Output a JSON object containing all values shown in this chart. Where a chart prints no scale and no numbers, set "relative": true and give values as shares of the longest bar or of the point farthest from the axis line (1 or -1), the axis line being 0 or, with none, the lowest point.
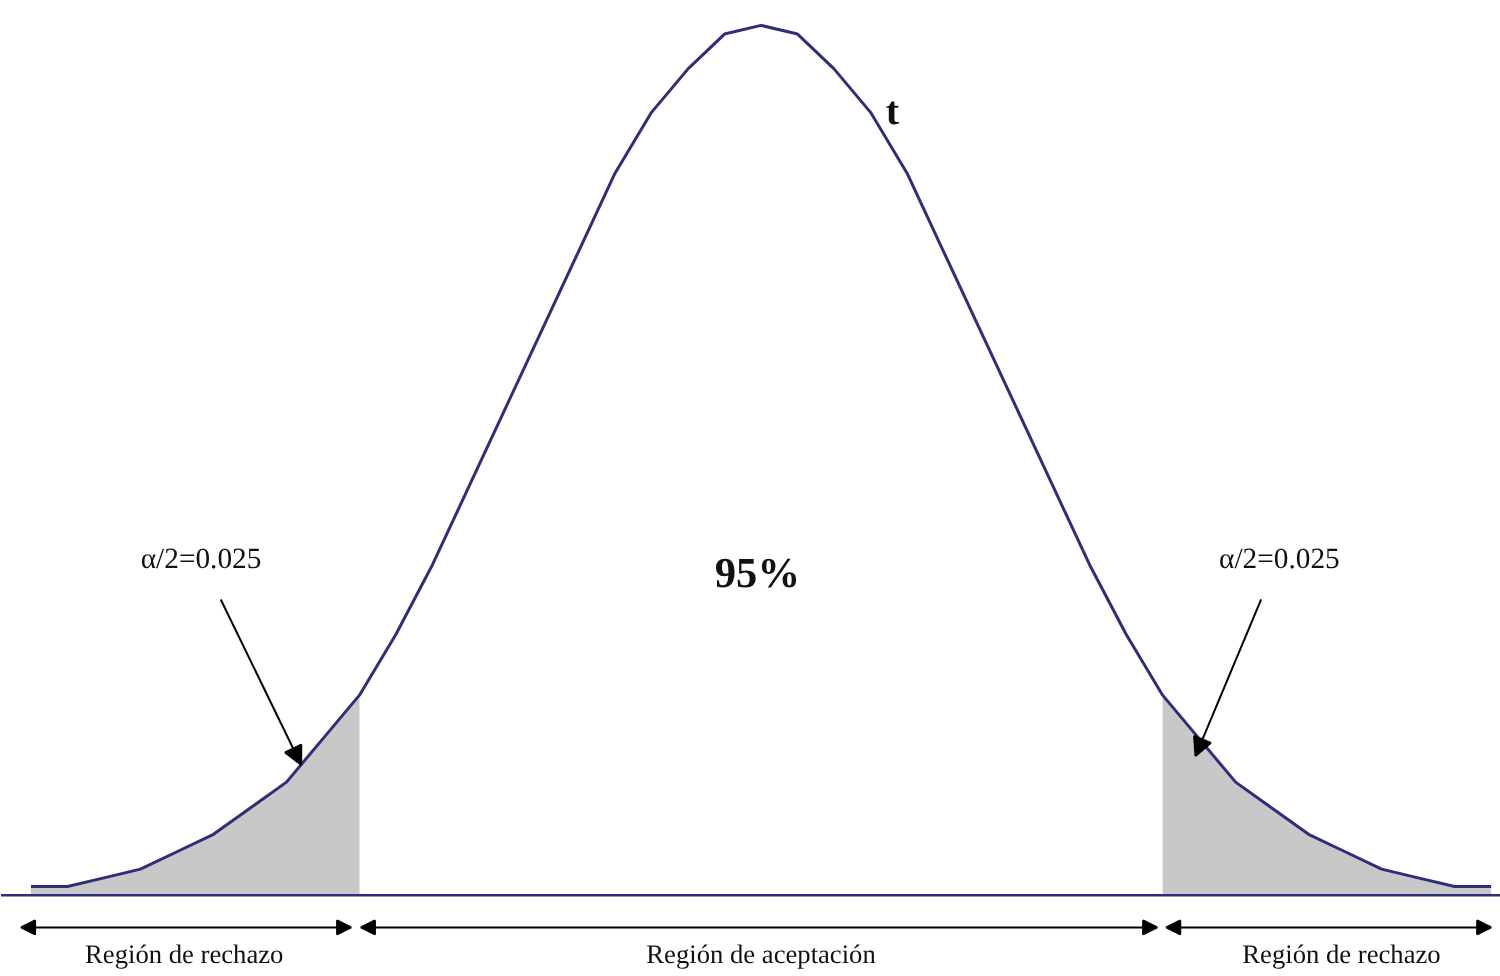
{
  "chart_data": {
    "type": "line",
    "relative": true,
    "categories": [
      null,
      null,
      null,
      null,
      null,
      null,
      null,
      null,
      null,
      null,
      null,
      null,
      null,
      null,
      null,
      null,
      null,
      null,
      null,
      null,
      null,
      null,
      null,
      null,
      null,
      null,
      null,
      null,
      null,
      null,
      null,
      null,
      null,
      null,
      null,
      null,
      null,
      null,
      null,
      null,
      null
    ],
    "series": [
      {
        "type": "area",
        "color": "#c8c8c8",
        "values": [
          0.01,
          0.01,
          0.02,
          0.03,
          0.05,
          0.07,
          0.1,
          0.13,
          0.18,
          0.23,
          null,
          null,
          null,
          null,
          null,
          null,
          null,
          null,
          null,
          null,
          null,
          null,
          null,
          null,
          null,
          null,
          null,
          null,
          null,
          null,
          null,
          0.23,
          0.18,
          0.13,
          0.1,
          0.07,
          0.05,
          0.03,
          0.02,
          0.01,
          0.01
        ]
      },
      {
        "color": "#2e2e7a",
        "values": [
          0.01,
          0.01,
          0.02,
          0.03,
          0.05,
          0.07,
          0.1,
          0.13,
          0.18,
          0.23,
          0.3,
          0.38,
          0.47,
          0.56,
          0.65,
          0.74,
          0.83,
          0.9,
          0.95,
          0.99,
          1,
          0.99,
          0.95,
          0.9,
          0.83,
          0.74,
          0.65,
          0.56,
          0.47,
          0.38,
          0.3,
          0.23,
          0.18,
          0.13,
          0.1,
          0.07,
          0.05,
          0.03,
          0.02,
          0.01,
          0.01
        ]
      }
    ],
    "annotations": [
      "t",
      "95%",
      "α/2=0.025",
      "α/2=0.025",
      "Región de rechazo",
      "Región de aceptación",
      "Región de rechazo"
    ]
  }
}
